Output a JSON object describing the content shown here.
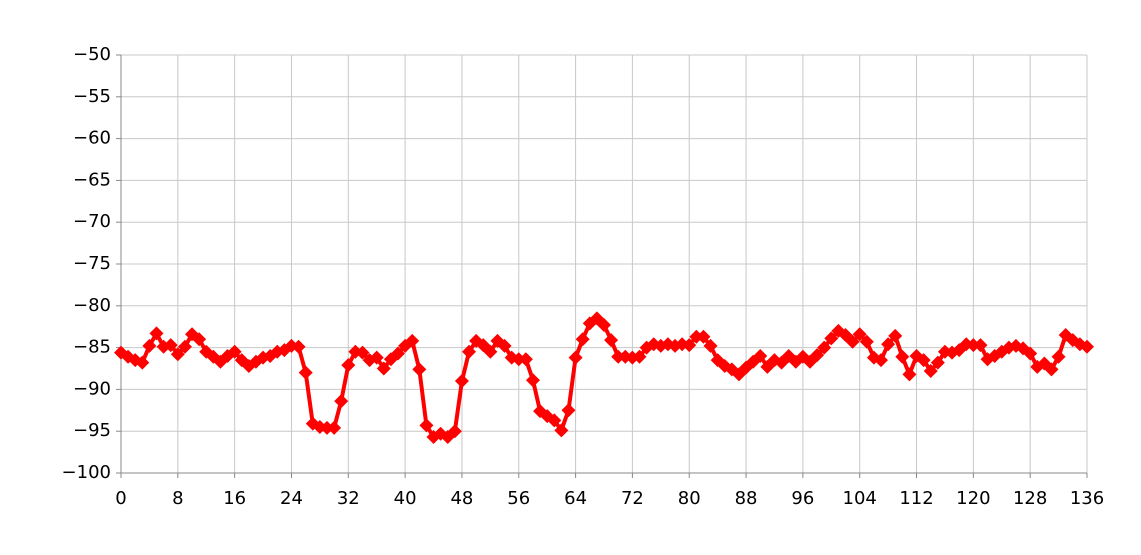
{
  "chart_data": {
    "type": "line",
    "color": "#ff0000",
    "marker": "diamond",
    "grid": true,
    "x": [
      0,
      1,
      2,
      3,
      4,
      5,
      6,
      7,
      8,
      9,
      10,
      11,
      12,
      13,
      14,
      15,
      16,
      17,
      18,
      19,
      20,
      21,
      22,
      23,
      24,
      25,
      26,
      27,
      28,
      29,
      30,
      31,
      32,
      33,
      34,
      35,
      36,
      37,
      38,
      39,
      40,
      41,
      42,
      43,
      44,
      45,
      46,
      47,
      48,
      49,
      50,
      51,
      52,
      53,
      54,
      55,
      56,
      57,
      58,
      59,
      60,
      61,
      62,
      63,
      64,
      65,
      66,
      67,
      68,
      69,
      70,
      71,
      72,
      73,
      74,
      75,
      76,
      77,
      78,
      79,
      80,
      81,
      82,
      83,
      84,
      85,
      86,
      87,
      88,
      89,
      90,
      91,
      92,
      93,
      94,
      95,
      96,
      97,
      98,
      99,
      100,
      101,
      102,
      103,
      104,
      105,
      106,
      107,
      108,
      109,
      110,
      111,
      112,
      113,
      114,
      115,
      116,
      117,
      118,
      119,
      120,
      121,
      122,
      123,
      124,
      125,
      126,
      127,
      128,
      129,
      130,
      131,
      132,
      133,
      134,
      135,
      136
    ],
    "values": [
      -85.6,
      -86.1,
      -86.5,
      -86.8,
      -84.8,
      -83.3,
      -84.9,
      -84.7,
      -85.8,
      -84.9,
      -83.4,
      -84,
      -85.5,
      -86.1,
      -86.7,
      -86,
      -85.5,
      -86.5,
      -87.2,
      -86.7,
      -86.2,
      -86,
      -85.5,
      -85.3,
      -84.8,
      -84.9,
      -88,
      -94.1,
      -94.5,
      -94.6,
      -94.6,
      -91.4,
      -87.1,
      -85.5,
      -85.6,
      -86.5,
      -86.2,
      -87.5,
      -86.4,
      -85.7,
      -84.8,
      -84.2,
      -87.6,
      -94.3,
      -95.7,
      -95.3,
      -95.7,
      -95,
      -89,
      -85.5,
      -84.2,
      -84.7,
      -85.5,
      -84.2,
      -84.8,
      -86.2,
      -86.4,
      -86.4,
      -88.9,
      -92.6,
      -93.2,
      -93.7,
      -94.9,
      -92.5,
      -86.2,
      -84,
      -82.1,
      -81.5,
      -82.3,
      -84.1,
      -86.1,
      -86.1,
      -86.2,
      -86.1,
      -85,
      -84.6,
      -84.8,
      -84.6,
      -84.8,
      -84.6,
      -84.7,
      -83.7,
      -83.7,
      -84.8,
      -86.5,
      -87.2,
      -87.6,
      -88.2,
      -87.4,
      -86.7,
      -86,
      -87.3,
      -86.5,
      -86.8,
      -86,
      -86.7,
      -86.1,
      -86.7,
      -85.9,
      -85,
      -83.9,
      -83,
      -83.5,
      -84.3,
      -83.4,
      -84.3,
      -86.2,
      -86.5,
      -84.6,
      -83.6,
      -86.1,
      -88.2,
      -86,
      -86.5,
      -87.8,
      -86.8,
      -85.5,
      -85.6,
      -85.3,
      -84.6,
      -84.7,
      -84.7,
      -86.4,
      -86,
      -85.5,
      -85,
      -84.8,
      -85.1,
      -85.7,
      -87.3,
      -86.9,
      -87.6,
      -86.1,
      -83.5,
      -84.1,
      -84.6,
      -84.9
    ],
    "xlim": [
      0,
      136
    ],
    "xticks": [
      0,
      8,
      16,
      24,
      32,
      40,
      48,
      56,
      64,
      72,
      80,
      88,
      96,
      104,
      112,
      120,
      128,
      136
    ],
    "ylim": [
      -100,
      -50
    ],
    "yticks": [
      {
        "value": -100,
        "label": "−100"
      },
      {
        "value": -95,
        "label": "−95"
      },
      {
        "value": -90,
        "label": "−90"
      },
      {
        "value": -85,
        "label": "−85"
      },
      {
        "value": -80,
        "label": "−80"
      },
      {
        "value": -75,
        "label": "−75"
      },
      {
        "value": -70,
        "label": "−70"
      },
      {
        "value": -65,
        "label": "−65"
      },
      {
        "value": -60,
        "label": "−60"
      },
      {
        "value": -55,
        "label": "−55"
      },
      {
        "value": -50,
        "label": "−50"
      }
    ]
  }
}
